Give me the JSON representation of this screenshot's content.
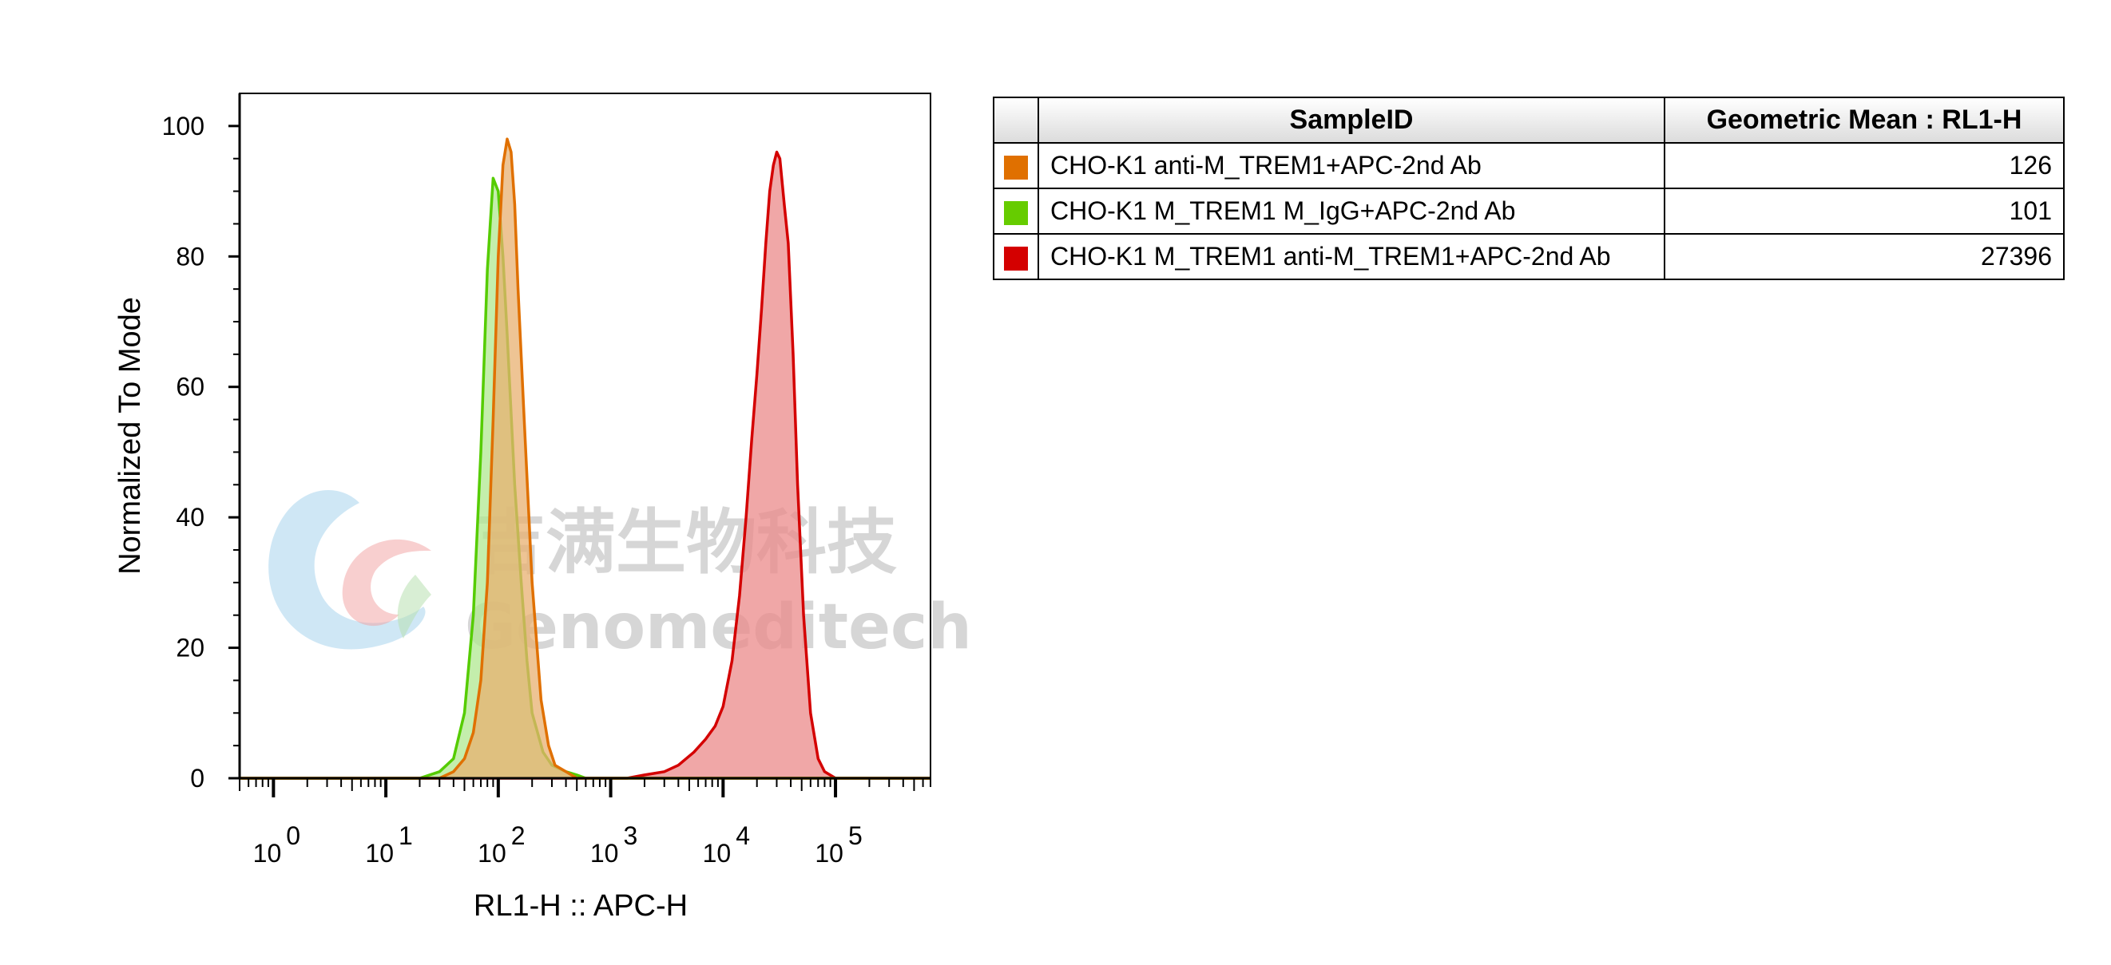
{
  "chart_data": {
    "type": "area",
    "xlabel": "RL1-H :: APC-H",
    "ylabel": "Normalized To Mode",
    "x_scale": "log",
    "xlim": [
      0.5,
      700000
    ],
    "ylim": [
      0,
      105
    ],
    "x_ticks": [
      {
        "base": "10",
        "exp": "0",
        "value": 1
      },
      {
        "base": "10",
        "exp": "1",
        "value": 10
      },
      {
        "base": "10",
        "exp": "2",
        "value": 100
      },
      {
        "base": "10",
        "exp": "3",
        "value": 1000
      },
      {
        "base": "10",
        "exp": "4",
        "value": 10000
      },
      {
        "base": "10",
        "exp": "5",
        "value": 100000
      }
    ],
    "y_ticks": [
      "0",
      "20",
      "40",
      "60",
      "80",
      "100"
    ],
    "y_tick_values": [
      0,
      20,
      40,
      60,
      80,
      100
    ],
    "series": [
      {
        "name": "CHO-K1 M_TREM1 anti-M_TREM1+APC-2nd Ab",
        "color": "#d40000",
        "fill": "#eb8a8a",
        "x": [
          1400,
          2000,
          3000,
          4000,
          5500,
          7000,
          8500,
          10000,
          12000,
          14000,
          16000,
          18000,
          20000,
          22000,
          24000,
          26000,
          28000,
          30000,
          32000,
          35000,
          38000,
          42000,
          46000,
          52000,
          60000,
          70000,
          80000,
          100000
        ],
        "y": [
          0,
          0.5,
          1,
          2,
          4,
          6,
          8,
          11,
          18,
          28,
          40,
          52,
          62,
          72,
          82,
          90,
          94,
          96,
          95,
          88,
          82,
          65,
          45,
          25,
          10,
          3,
          1,
          0
        ]
      },
      {
        "name": "CHO-K1 M_TREM1 M_IgG+APC-2nd Ab",
        "color": "#55cc00",
        "fill": "#b0e890",
        "x": [
          20,
          30,
          40,
          50,
          60,
          70,
          80,
          90,
          100,
          110,
          120,
          140,
          160,
          180,
          200,
          250,
          300,
          400,
          500,
          600
        ],
        "y": [
          0,
          1,
          3,
          10,
          25,
          50,
          78,
          92,
          90,
          80,
          68,
          45,
          30,
          18,
          10,
          4,
          2,
          1,
          0.5,
          0
        ]
      },
      {
        "name": "CHO-K1 anti-M_TREM1+APC-2nd Ab",
        "color": "#e07000",
        "fill": "#e8b070",
        "x": [
          30,
          40,
          50,
          60,
          70,
          80,
          90,
          100,
          110,
          120,
          130,
          140,
          150,
          170,
          200,
          240,
          280,
          320,
          400,
          500
        ],
        "y": [
          0,
          1,
          3,
          7,
          15,
          30,
          55,
          80,
          94,
          98,
          96,
          88,
          75,
          55,
          30,
          12,
          5,
          2,
          1,
          0
        ]
      }
    ]
  },
  "watermark": {
    "cn_text": "吉满生物科技",
    "en_text": "Genomeditech"
  },
  "legend_table": {
    "headers": {
      "sample": "SampleID",
      "metric": "Geometric Mean : RL1-H"
    },
    "rows": [
      {
        "color": "#e07000",
        "sample": "CHO-K1 anti-M_TREM1+APC-2nd Ab",
        "value": "126"
      },
      {
        "color": "#66cc00",
        "sample": "CHO-K1 M_TREM1 M_IgG+APC-2nd Ab",
        "value": "101"
      },
      {
        "color": "#d40000",
        "sample": "CHO-K1 M_TREM1 anti-M_TREM1+APC-2nd Ab",
        "value": "27396"
      }
    ]
  }
}
